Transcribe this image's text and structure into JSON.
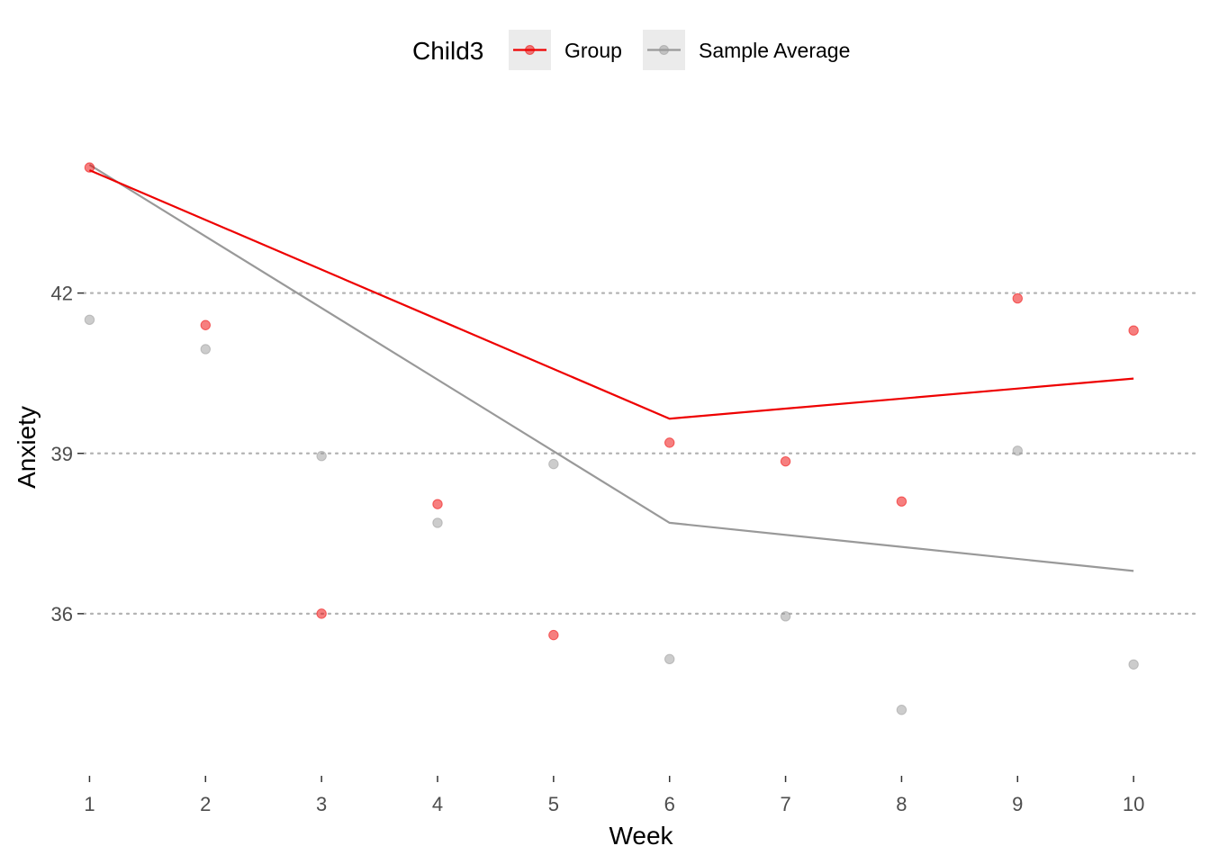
{
  "chart_data": {
    "type": "line",
    "xlabel": "Week",
    "ylabel": "Anxiety",
    "x": [
      1,
      2,
      3,
      4,
      5,
      6,
      7,
      8,
      9,
      10
    ],
    "y_ticks": [
      36,
      39,
      42
    ],
    "xlim": [
      0.95,
      10.55
    ],
    "ylim": [
      33.0,
      45.8
    ],
    "grid": "horizontal dotted",
    "legend": {
      "title": "Child3",
      "position": "top",
      "entries": [
        "Group",
        "Sample Average"
      ]
    },
    "series": [
      {
        "name": "Group",
        "color": "#ee0000",
        "line": [
          [
            1,
            44.3
          ],
          [
            6,
            39.65
          ],
          [
            10,
            40.4
          ]
        ],
        "points": [
          44.35,
          41.4,
          36.0,
          38.05,
          35.6,
          39.2,
          38.85,
          38.1,
          41.9,
          41.3
        ]
      },
      {
        "name": "Sample Average",
        "color": "#999999",
        "line": [
          [
            1,
            44.4
          ],
          [
            6,
            37.7
          ],
          [
            10,
            36.8
          ]
        ],
        "points": [
          41.5,
          40.95,
          38.95,
          37.7,
          38.8,
          35.15,
          35.95,
          34.2,
          39.05,
          35.05
        ]
      }
    ]
  }
}
